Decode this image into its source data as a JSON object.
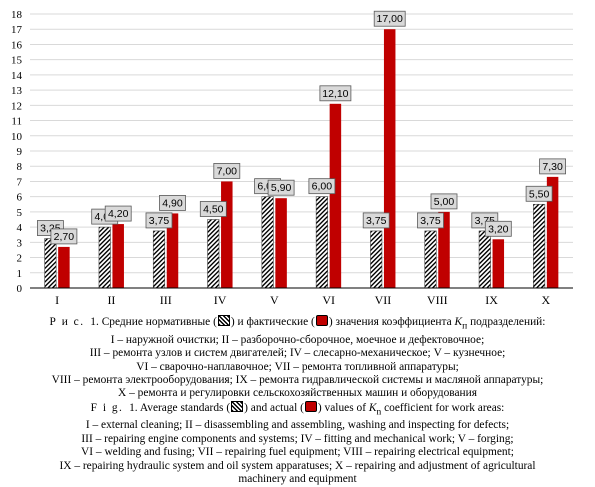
{
  "chart_data": {
    "type": "bar",
    "categories": [
      "I",
      "II",
      "III",
      "IV",
      "V",
      "VI",
      "VII",
      "VIII",
      "IX",
      "X"
    ],
    "series": [
      {
        "values": [
          3.25,
          4.0,
          3.75,
          4.5,
          6.0,
          6.0,
          3.75,
          3.75,
          3.75,
          5.5
        ],
        "labels": [
          "3,25",
          "4,00",
          "3,75",
          "4,50",
          "6,00",
          "6,00",
          "3,75",
          "3,75",
          "3,75",
          "5,50"
        ],
        "style": "hatched",
        "color": "#000000"
      },
      {
        "values": [
          2.7,
          4.2,
          4.9,
          7.0,
          5.9,
          12.1,
          17.0,
          5.0,
          3.2,
          7.3
        ],
        "labels": [
          "2,70",
          "4,20",
          "4,90",
          "7,00",
          "5,90",
          "12,10",
          "17,00",
          "5,00",
          "3,20",
          "7,30"
        ],
        "style": "solid",
        "color": "#c00000"
      }
    ],
    "ylim": [
      0,
      18
    ],
    "yticks": [
      0,
      1,
      2,
      3,
      4,
      5,
      6,
      7,
      8,
      9,
      10,
      11,
      12,
      13,
      14,
      15,
      16,
      17,
      18
    ],
    "grid": true,
    "title": "",
    "xlabel": "",
    "ylabel": ""
  },
  "caption_ru": {
    "prefix": "Р и с.",
    "number": "1.",
    "part1": "Средние нормативные (",
    "part2": ") и фактические (",
    "part3": ") значения коэффициента",
    "k_var": "K",
    "k_sub": "п",
    "part4": "подразделений:",
    "lines": [
      "I – наружной очистки; II – разборочно-сборочное, моечное и дефектовочное;",
      "III – ремонта узлов и систем двигателей; IV – слесарно-механическое; V – кузнечное;",
      "VI – сварочно-наплавочное; VII – ремонта топливной аппаратуры;",
      "VIII – ремонта электрооборудования; IX – ремонта гидравлической системы и масляной аппаратуры;",
      "X – ремонта и регулировки сельскохозяйственных машин и оборудования"
    ]
  },
  "caption_en": {
    "prefix": "F i g.",
    "number": "1.",
    "part1": "Average standards (",
    "part2": ") and actual (",
    "part3": ") values of",
    "k_var": "K",
    "k_sub": "n",
    "part4": "coefficient for work areas:",
    "lines": [
      "I – external cleaning; II – disassembling and assembling, washing and inspecting for defects;",
      "III – repairing engine components and systems; IV – fitting and mechanical work; V – forging;",
      "VI – welding and fusing; VII – repairing fuel equipment; VIII – repairing electrical equipment;",
      "IX – repairing hydraulic system and oil system apparatuses; X – repairing and adjustment of agricultural",
      "machinery and equipment"
    ]
  }
}
